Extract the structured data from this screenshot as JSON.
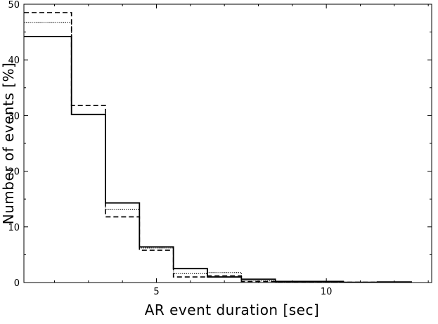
{
  "chart_data": {
    "type": "histogram",
    "xlabel": "AR event duration [sec]",
    "ylabel": "Number of events [%]",
    "xlim": [
      1.1,
      13.1
    ],
    "ylim": [
      0,
      50
    ],
    "x_ticks": [
      5,
      10
    ],
    "y_ticks": [
      0,
      10,
      20,
      30,
      40,
      50
    ],
    "bin_edges": [
      1.1,
      2.5,
      3.5,
      4.5,
      5.5,
      6.5,
      7.5,
      8.5,
      9.5,
      10.5,
      11.5,
      12.5
    ],
    "series": [
      {
        "style": "solid",
        "color": "#000000",
        "values": [
          44.2,
          30.2,
          14.3,
          6.4,
          2.5,
          1.0,
          0.6,
          0.2,
          0.2,
          0.05,
          0.1
        ]
      },
      {
        "style": "dotted",
        "color": "#000000",
        "values": [
          46.7,
          30.2,
          13.1,
          6.2,
          1.6,
          1.8,
          0.3,
          0.1,
          0.1,
          0.05,
          0.05
        ]
      },
      {
        "style": "dashed",
        "color": "#000000",
        "values": [
          48.5,
          31.8,
          11.8,
          5.8,
          1.0,
          1.2,
          0.2,
          0.1,
          0.1,
          0.05,
          0.05
        ]
      }
    ],
    "grid": false,
    "legend": false
  }
}
